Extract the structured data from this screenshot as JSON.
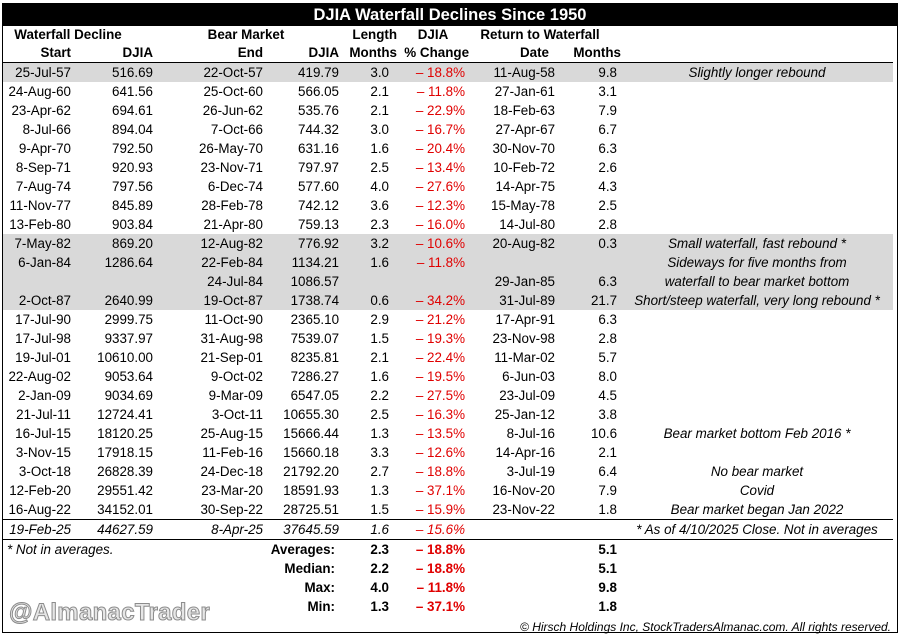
{
  "title": "DJIA Waterfall Declines Since 1950",
  "headers": {
    "group1": "Waterfall Decline",
    "group2": "Bear Market",
    "group3": "Length",
    "group4": "DJIA",
    "group5": "Return to Waterfall",
    "start": "Start",
    "djia1": "DJIA",
    "end": "End",
    "djia2": "DJIA",
    "months1": "Months",
    "pct_change": "% Change",
    "date": "Date",
    "months2": "Months"
  },
  "rows": [
    {
      "start": "25-Jul-57",
      "djia1": "516.69",
      "end": "22-Oct-57",
      "djia2": "419.79",
      "len": "3.0",
      "pct": "– 18.8%",
      "ret": "11-Aug-58",
      "mo": "9.8",
      "note": "Slightly longer rebound",
      "shade": true
    },
    {
      "start": "24-Aug-60",
      "djia1": "641.56",
      "end": "25-Oct-60",
      "djia2": "566.05",
      "len": "2.1",
      "pct": "– 11.8%",
      "ret": "27-Jan-61",
      "mo": "3.1",
      "note": "",
      "shade": false
    },
    {
      "start": "23-Apr-62",
      "djia1": "694.61",
      "end": "26-Jun-62",
      "djia2": "535.76",
      "len": "2.1",
      "pct": "– 22.9%",
      "ret": "18-Feb-63",
      "mo": "7.9",
      "note": "",
      "shade": false
    },
    {
      "start": "8-Jul-66",
      "djia1": "894.04",
      "end": "7-Oct-66",
      "djia2": "744.32",
      "len": "3.0",
      "pct": "– 16.7%",
      "ret": "27-Apr-67",
      "mo": "6.7",
      "note": "",
      "shade": false
    },
    {
      "start": "9-Apr-70",
      "djia1": "792.50",
      "end": "26-May-70",
      "djia2": "631.16",
      "len": "1.6",
      "pct": "– 20.4%",
      "ret": "30-Nov-70",
      "mo": "6.3",
      "note": "",
      "shade": false
    },
    {
      "start": "8-Sep-71",
      "djia1": "920.93",
      "end": "23-Nov-71",
      "djia2": "797.97",
      "len": "2.5",
      "pct": "– 13.4%",
      "ret": "10-Feb-72",
      "mo": "2.6",
      "note": "",
      "shade": false
    },
    {
      "start": "7-Aug-74",
      "djia1": "797.56",
      "end": "6-Dec-74",
      "djia2": "577.60",
      "len": "4.0",
      "pct": "– 27.6%",
      "ret": "14-Apr-75",
      "mo": "4.3",
      "note": "",
      "shade": false
    },
    {
      "start": "11-Nov-77",
      "djia1": "845.89",
      "end": "28-Feb-78",
      "djia2": "742.12",
      "len": "3.6",
      "pct": "– 12.3%",
      "ret": "15-May-78",
      "mo": "2.5",
      "note": "",
      "shade": false
    },
    {
      "start": "13-Feb-80",
      "djia1": "903.84",
      "end": "21-Apr-80",
      "djia2": "759.13",
      "len": "2.3",
      "pct": "– 16.0%",
      "ret": "14-Jul-80",
      "mo": "2.8",
      "note": "",
      "shade": false
    },
    {
      "start": "7-May-82",
      "djia1": "869.20",
      "end": "12-Aug-82",
      "djia2": "776.92",
      "len": "3.2",
      "pct": "– 10.6%",
      "ret": "20-Aug-82",
      "mo": "0.3",
      "note": "Small waterfall, fast rebound *",
      "shade": true
    },
    {
      "start": "6-Jan-84",
      "djia1": "1286.64",
      "end": "22-Feb-84",
      "djia2": "1134.21",
      "len": "1.6",
      "pct": "– 11.8%",
      "ret": "",
      "mo": "",
      "note": "Sideways for five months from",
      "shade": true
    },
    {
      "start": "",
      "djia1": "",
      "end": "24-Jul-84",
      "djia2": "1086.57",
      "len": "",
      "pct": "",
      "ret": "29-Jan-85",
      "mo": "6.3",
      "note": "waterfall to bear market bottom",
      "shade": true
    },
    {
      "start": "2-Oct-87",
      "djia1": "2640.99",
      "end": "19-Oct-87",
      "djia2": "1738.74",
      "len": "0.6",
      "pct": "– 34.2%",
      "ret": "31-Jul-89",
      "mo": "21.7",
      "note": "Short/steep waterfall, very long rebound *",
      "shade": true
    },
    {
      "start": "17-Jul-90",
      "djia1": "2999.75",
      "end": "11-Oct-90",
      "djia2": "2365.10",
      "len": "2.9",
      "pct": "– 21.2%",
      "ret": "17-Apr-91",
      "mo": "6.3",
      "note": "",
      "shade": false
    },
    {
      "start": "17-Jul-98",
      "djia1": "9337.97",
      "end": "31-Aug-98",
      "djia2": "7539.07",
      "len": "1.5",
      "pct": "– 19.3%",
      "ret": "23-Nov-98",
      "mo": "2.8",
      "note": "",
      "shade": false
    },
    {
      "start": "19-Jul-01",
      "djia1": "10610.00",
      "end": "21-Sep-01",
      "djia2": "8235.81",
      "len": "2.1",
      "pct": "– 22.4%",
      "ret": "11-Mar-02",
      "mo": "5.7",
      "note": "",
      "shade": false
    },
    {
      "start": "22-Aug-02",
      "djia1": "9053.64",
      "end": "9-Oct-02",
      "djia2": "7286.27",
      "len": "1.6",
      "pct": "– 19.5%",
      "ret": "6-Jun-03",
      "mo": "8.0",
      "note": "",
      "shade": false
    },
    {
      "start": "2-Jan-09",
      "djia1": "9034.69",
      "end": "9-Mar-09",
      "djia2": "6547.05",
      "len": "2.2",
      "pct": "– 27.5%",
      "ret": "23-Jul-09",
      "mo": "4.5",
      "note": "",
      "shade": false
    },
    {
      "start": "21-Jul-11",
      "djia1": "12724.41",
      "end": "3-Oct-11",
      "djia2": "10655.30",
      "len": "2.5",
      "pct": "– 16.3%",
      "ret": "25-Jan-12",
      "mo": "3.8",
      "note": "",
      "shade": false
    },
    {
      "start": "16-Jul-15",
      "djia1": "18120.25",
      "end": "25-Aug-15",
      "djia2": "15666.44",
      "len": "1.3",
      "pct": "– 13.5%",
      "ret": "8-Jul-16",
      "mo": "10.6",
      "note": "Bear market bottom Feb 2016 *",
      "shade": false
    },
    {
      "start": "3-Nov-15",
      "djia1": "17918.15",
      "end": "11-Feb-16",
      "djia2": "15660.18",
      "len": "3.3",
      "pct": "– 12.6%",
      "ret": "14-Apr-16",
      "mo": "2.1",
      "note": "",
      "shade": false
    },
    {
      "start": "3-Oct-18",
      "djia1": "26828.39",
      "end": "24-Dec-18",
      "djia2": "21792.20",
      "len": "2.7",
      "pct": "– 18.8%",
      "ret": "3-Jul-19",
      "mo": "6.4",
      "note": "No bear market",
      "shade": false
    },
    {
      "start": "12-Feb-20",
      "djia1": "29551.42",
      "end": "23-Mar-20",
      "djia2": "18591.93",
      "len": "1.3",
      "pct": "– 37.1%",
      "ret": "16-Nov-20",
      "mo": "7.9",
      "note": "Covid",
      "shade": false
    },
    {
      "start": "16-Aug-22",
      "djia1": "34152.01",
      "end": "30-Sep-22",
      "djia2": "28725.51",
      "len": "1.5",
      "pct": "– 15.9%",
      "ret": "23-Nov-22",
      "mo": "1.8",
      "note": "Bear market began Jan 2022",
      "shade": false
    },
    {
      "start": "19-Feb-25",
      "djia1": "44627.59",
      "end": "8-Apr-25",
      "djia2": "37645.59",
      "len": "1.6",
      "pct": "– 15.6%",
      "ret": "",
      "mo": "",
      "note": "* As of 4/10/2025 Close. Not in averages",
      "shade": false,
      "italic": true
    }
  ],
  "footnote": "* Not in averages.",
  "summary": [
    {
      "label": "Averages:",
      "len": "2.3",
      "pct": "– 18.8%",
      "mo": "5.1"
    },
    {
      "label": "Median:",
      "len": "2.2",
      "pct": "– 18.8%",
      "mo": "5.1"
    },
    {
      "label": "Max:",
      "len": "4.0",
      "pct": "– 11.8%",
      "mo": "9.8"
    },
    {
      "label": "Min:",
      "len": "1.3",
      "pct": "– 37.1%",
      "mo": "1.8"
    }
  ],
  "watermark": "@AlmanacTrader",
  "copyright": "© Hirsch Holdings Inc, StockTradersAlmanac.com. All rights reserved."
}
